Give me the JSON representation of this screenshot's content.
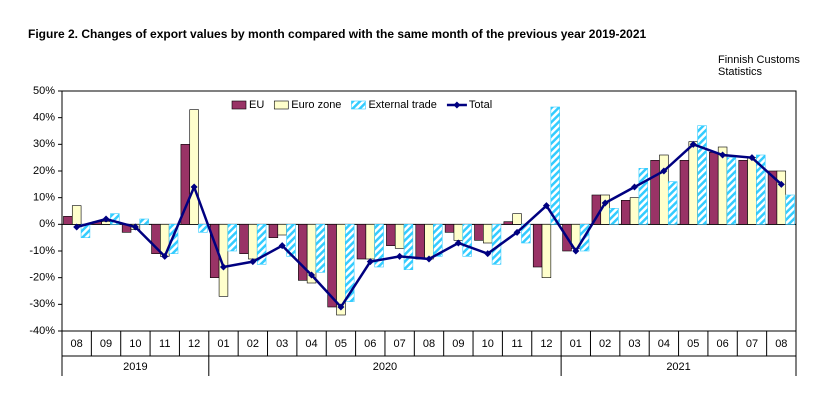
{
  "chart_data": {
    "type": "bar",
    "title": "Figure  2. Changes of export values by month compared with the same month of the previous  year 2019-2021",
    "source": [
      "Finnish Customs",
      "Statistics"
    ],
    "groups": [
      {
        "label": "2019",
        "categories": [
          "08",
          "09",
          "10",
          "11",
          "12"
        ]
      },
      {
        "label": "2020",
        "categories": [
          "01",
          "02",
          "03",
          "04",
          "05",
          "06",
          "07",
          "08",
          "09",
          "10",
          "11",
          "12"
        ]
      },
      {
        "label": "2021",
        "categories": [
          "01",
          "02",
          "03",
          "04",
          "05",
          "06",
          "07",
          "08"
        ]
      }
    ],
    "series": [
      {
        "name": "EU",
        "type": "bar",
        "color": "#993366",
        "values": [
          3,
          1,
          -3,
          -11,
          30,
          -20,
          -11,
          -5,
          -21,
          -31,
          -13,
          -8,
          -13,
          -3,
          -6,
          1,
          -16,
          -10,
          11,
          9,
          24,
          24,
          27,
          24,
          20
        ]
      },
      {
        "name": "Euro zone",
        "type": "bar",
        "color": "#ffffcc",
        "values": [
          7,
          1,
          -2,
          -12,
          43,
          -27,
          -13,
          -4,
          -22,
          -34,
          -13,
          -9,
          -13,
          -6,
          -7,
          4,
          -20,
          -9,
          11,
          10,
          26,
          31,
          29,
          25,
          20
        ]
      },
      {
        "name": "External trade",
        "type": "bar",
        "color": "#33ccff",
        "hatched": true,
        "values": [
          -5,
          4,
          2,
          -11,
          -3,
          -10,
          -15,
          -12,
          -18,
          -29,
          -16,
          -17,
          -12,
          -12,
          -15,
          -7,
          44,
          -10,
          6,
          21,
          16,
          37,
          25,
          26,
          11
        ]
      },
      {
        "name": "Total",
        "type": "line",
        "color": "#000080",
        "values": [
          -1,
          2,
          -1,
          -12,
          14,
          -16,
          -14,
          -8,
          -19,
          -31,
          -14,
          -12,
          -13,
          -7,
          -11,
          -3,
          7,
          -10,
          8,
          14,
          20,
          30,
          26,
          25,
          15
        ]
      }
    ],
    "ylim": [
      -40,
      50
    ],
    "yticks": [
      {
        "value": -40,
        "label": "-40%"
      },
      {
        "value": -30,
        "label": "-30%"
      },
      {
        "value": -20,
        "label": "-20%"
      },
      {
        "value": -10,
        "label": "-10%"
      },
      {
        "value": 0,
        "label": "0%"
      },
      {
        "value": 10,
        "label": "10%"
      },
      {
        "value": 20,
        "label": "20%"
      },
      {
        "value": 30,
        "label": "30%"
      },
      {
        "value": 40,
        "label": "40%"
      },
      {
        "value": 50,
        "label": "50%"
      }
    ],
    "legend": "top"
  }
}
